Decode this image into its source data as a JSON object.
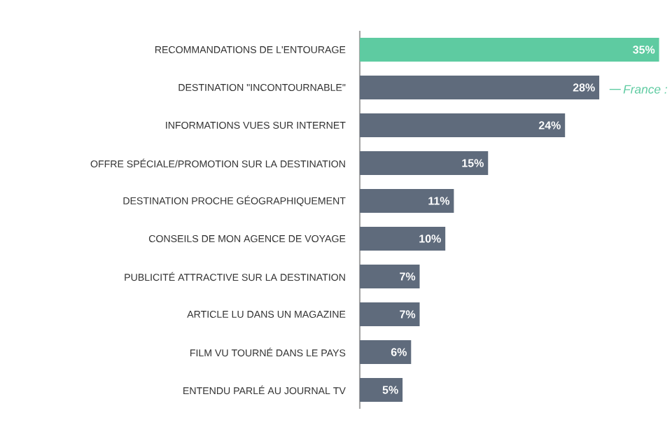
{
  "chart_data": {
    "type": "bar",
    "orientation": "horizontal",
    "categories": [
      "RECOMMANDATIONS DE L'ENTOURAGE",
      "DESTINATION \"INCONTOURNABLE\"",
      "INFORMATIONS VUES SUR INTERNET",
      "OFFRE SPÉCIALE/PROMOTION SUR LA DESTINATION",
      "DESTINATION PROCHE GÉOGRAPHIQUEMENT",
      "CONSEILS DE MON AGENCE DE VOYAGE",
      "PUBLICITÉ ATTRACTIVE SUR LA DESTINATION",
      "ARTICLE LU DANS UN MAGAZINE",
      "FILM VU TOURNÉ DANS LE PAYS",
      "ENTENDU PARLÉ AU JOURNAL TV"
    ],
    "values": [
      35,
      28,
      24,
      15,
      11,
      10,
      7,
      7,
      6,
      5
    ],
    "colors": [
      "#5ecba1",
      "#5f6b7c",
      "#5f6b7c",
      "#5f6b7c",
      "#5f6b7c",
      "#5f6b7c",
      "#5f6b7c",
      "#5f6b7c",
      "#5f6b7c",
      "#5f6b7c"
    ],
    "value_labels": [
      "35%",
      "28%",
      "24%",
      "15%",
      "11%",
      "10%",
      "7%",
      "7%",
      "6%",
      "5%"
    ],
    "annotations": [
      "France :"
    ]
  }
}
